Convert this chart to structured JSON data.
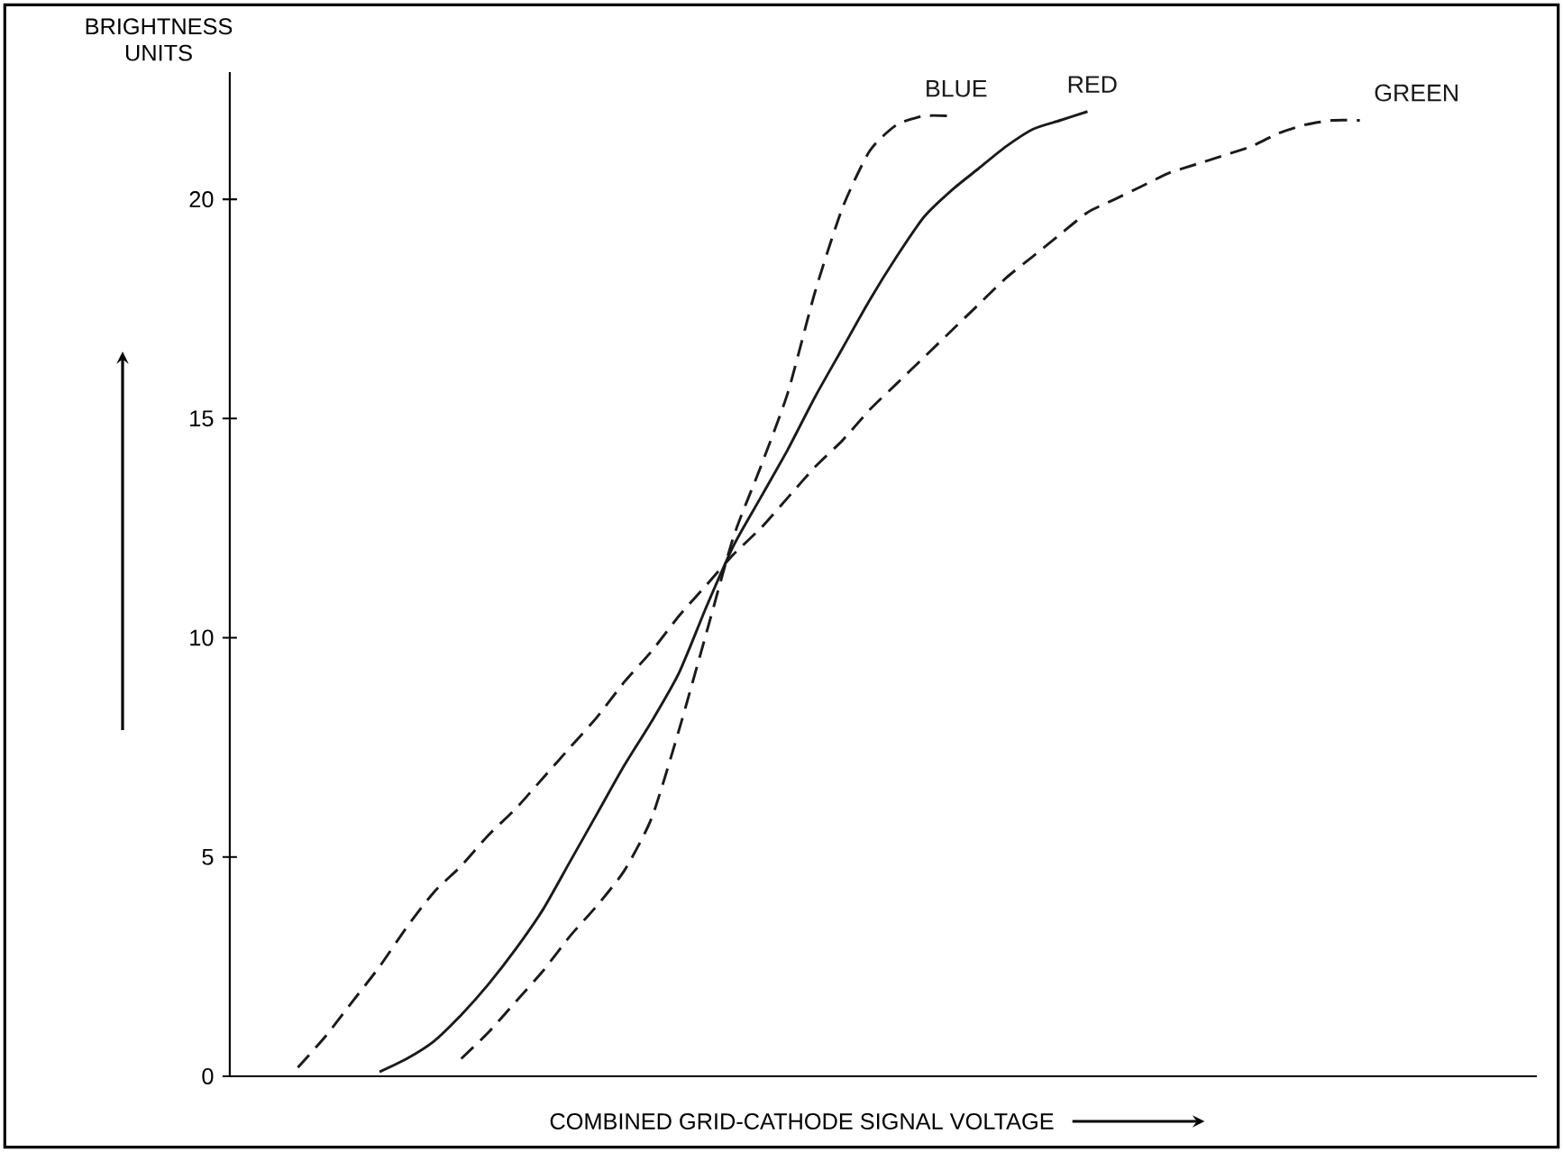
{
  "chart_data": {
    "type": "line",
    "xlabel": "COMBINED GRID-CATHODE SIGNAL VOLTAGE",
    "ylabel": "BRIGHTNESS UNITS",
    "tick_labels": "y",
    "marker": "none",
    "categories": [
      null,
      null,
      null,
      null,
      null,
      null,
      null,
      null,
      null,
      null,
      null,
      null,
      null,
      null,
      null,
      null,
      null,
      null,
      null,
      null,
      null,
      null,
      null,
      null,
      null,
      null,
      null,
      null,
      null,
      null,
      null,
      null,
      null,
      null,
      null,
      null,
      null,
      null,
      null,
      null,
      null,
      null,
      null,
      null,
      null,
      null,
      null,
      null
    ],
    "ylim": [
      0,
      22.9
    ],
    "yticks": [
      0,
      5,
      10,
      15,
      20
    ],
    "series": [
      {
        "name": "BLUE",
        "color": "#1a1a1a",
        "line_style": "dashed",
        "values": [
          null,
          null,
          null,
          null,
          null,
          null,
          null,
          null,
          0.4,
          1.0,
          1.7,
          2.4,
          3.2,
          3.9,
          4.7,
          5.9,
          7.9,
          10.1,
          12.3,
          13.9,
          15.6,
          17.9,
          19.8,
          21.1,
          21.7,
          21.9,
          21.9,
          null,
          null,
          null,
          null,
          null,
          null,
          null,
          null,
          null,
          null,
          null,
          null,
          null,
          null,
          null,
          null,
          null,
          null,
          null,
          null,
          null
        ]
      },
      {
        "name": "RED",
        "color": "#1a1a1a",
        "line_style": "solid",
        "values": [
          null,
          null,
          null,
          null,
          null,
          0.1,
          0.4,
          0.8,
          1.4,
          2.1,
          2.9,
          3.8,
          4.9,
          6.0,
          7.1,
          8.1,
          9.2,
          10.7,
          12.1,
          13.2,
          14.3,
          15.5,
          16.6,
          17.7,
          18.7,
          19.6,
          20.2,
          20.7,
          21.2,
          21.6,
          21.8,
          22.0,
          null,
          null,
          null,
          null,
          null,
          null,
          null,
          null,
          null,
          null,
          null,
          null,
          null,
          null,
          null,
          null
        ]
      },
      {
        "name": "GREEN",
        "color": "#1a1a1a",
        "line_style": "dashed",
        "values": [
          null,
          null,
          0.2,
          0.9,
          1.7,
          2.5,
          3.4,
          4.2,
          4.8,
          5.5,
          6.1,
          6.8,
          7.5,
          8.2,
          9.0,
          9.7,
          10.5,
          11.2,
          11.9,
          12.5,
          13.2,
          13.9,
          14.5,
          15.2,
          15.8,
          16.4,
          17.0,
          17.6,
          18.2,
          18.7,
          19.2,
          19.7,
          20.0,
          20.3,
          20.6,
          20.8,
          21.0,
          21.2,
          21.5,
          21.7,
          21.8,
          21.8,
          null,
          null,
          null,
          null,
          null,
          null
        ]
      }
    ]
  }
}
